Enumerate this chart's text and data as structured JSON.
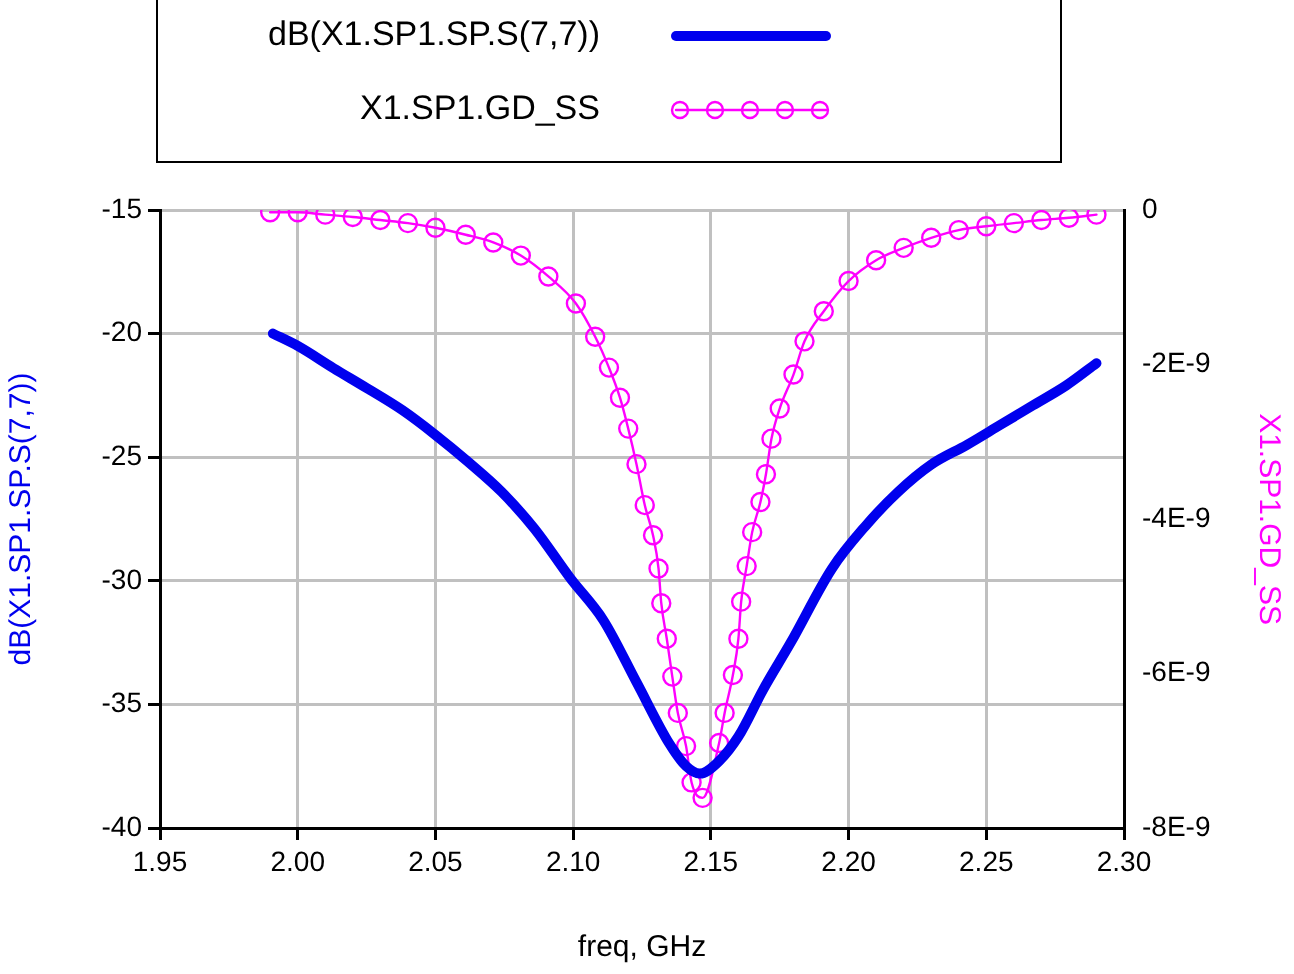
{
  "chart_data": {
    "type": "line",
    "xlabel": "freq, GHz",
    "ylabel": "dB(X1.SP1.SP.S(7,7))",
    "y2label": "X1.SP1.GD_SS",
    "xlim": [
      1.95,
      2.3
    ],
    "xticks": [
      1.95,
      {
        "value": 2,
        "label": "2.00"
      },
      2.05,
      {
        "value": 2.1,
        "label": "2.10"
      },
      2.15,
      {
        "value": 2.2,
        "label": "2.20"
      },
      2.25,
      {
        "value": 2.3,
        "label": "2.30"
      }
    ],
    "ylim": [
      -40,
      -15
    ],
    "yticks": [
      -40,
      -35,
      -30,
      -25,
      -20,
      -15
    ],
    "y2lim": [
      -8e-09,
      0
    ],
    "y2ticks": [
      {
        "value": -8e-09,
        "label": "-8E-9"
      },
      {
        "value": -6e-09,
        "label": "-6E-9"
      },
      {
        "value": -4e-09,
        "label": "-4E-9"
      },
      {
        "value": -2e-09,
        "label": "-2E-9"
      },
      0
    ],
    "grid": true,
    "legend": "top left",
    "series": [
      {
        "name": "dB(X1.SP1.SP.S(7,7))",
        "color": "#0000ee",
        "marker": "none",
        "line_style": "solid",
        "x": [
          1.991,
          2.0,
          2.013,
          2.025,
          2.038,
          2.05,
          2.062,
          2.074,
          2.086,
          2.099,
          2.111,
          2.123,
          2.135,
          2.141,
          2.146,
          2.152,
          2.16,
          2.169,
          2.179,
          2.194,
          2.206,
          2.218,
          2.23,
          2.243,
          2.255,
          2.267,
          2.279,
          2.29
        ],
        "values": [
          -20.0,
          -20.5,
          -21.4,
          -22.2,
          -23.1,
          -24.1,
          -25.2,
          -26.4,
          -27.9,
          -29.9,
          -31.6,
          -34.1,
          -36.6,
          -37.5,
          -37.8,
          -37.4,
          -36.3,
          -34.4,
          -32.5,
          -29.5,
          -27.8,
          -26.4,
          -25.3,
          -24.5,
          -23.7,
          -22.9,
          -22.1,
          -21.2
        ]
      },
      {
        "name": "X1.SP1.GD_SS",
        "color": "#ff00ff",
        "marker": "circle",
        "line_style": "solid",
        "axis": "y2",
        "x": [
          1.99,
          2.0,
          2.01,
          2.02,
          2.03,
          2.04,
          2.05,
          2.061,
          2.071,
          2.081,
          2.091,
          2.101,
          2.108,
          2.113,
          2.117,
          2.12,
          2.123,
          2.126,
          2.129,
          2.131,
          2.132,
          2.134,
          2.136,
          2.138,
          2.141,
          2.143,
          2.147,
          2.153,
          2.155,
          2.158,
          2.16,
          2.161,
          2.163,
          2.165,
          2.168,
          2.17,
          2.172,
          2.175,
          2.18,
          2.184,
          2.191,
          2.2,
          2.21,
          2.22,
          2.23,
          2.24,
          2.25,
          2.26,
          2.27,
          2.28,
          2.29
        ],
        "values": [
          -3e-11,
          -3e-11,
          -6e-11,
          -9e-11,
          -1.3e-10,
          -1.7e-10,
          -2.3e-10,
          -3.2e-10,
          -4.2e-10,
          -5.9e-10,
          -8.6e-10,
          -1.21e-09,
          -1.64e-09,
          -2.04e-09,
          -2.43e-09,
          -2.83e-09,
          -3.29e-09,
          -3.82e-09,
          -4.21e-09,
          -4.64e-09,
          -5.09e-09,
          -5.55e-09,
          -6.04e-09,
          -6.51e-09,
          -6.94e-09,
          -7.41e-09,
          -7.61e-09,
          -6.9e-09,
          -6.51e-09,
          -6.02e-09,
          -5.55e-09,
          -5.07e-09,
          -4.61e-09,
          -4.17e-09,
          -3.78e-09,
          -3.42e-09,
          -2.96e-09,
          -2.57e-09,
          -2.13e-09,
          -1.7e-09,
          -1.31e-09,
          -9.2e-10,
          -6.5e-10,
          -4.9e-10,
          -3.6e-10,
          -2.6e-10,
          -2.1e-10,
          -1.7e-10,
          -1.3e-10,
          -1e-10,
          -6e-11
        ]
      }
    ]
  }
}
